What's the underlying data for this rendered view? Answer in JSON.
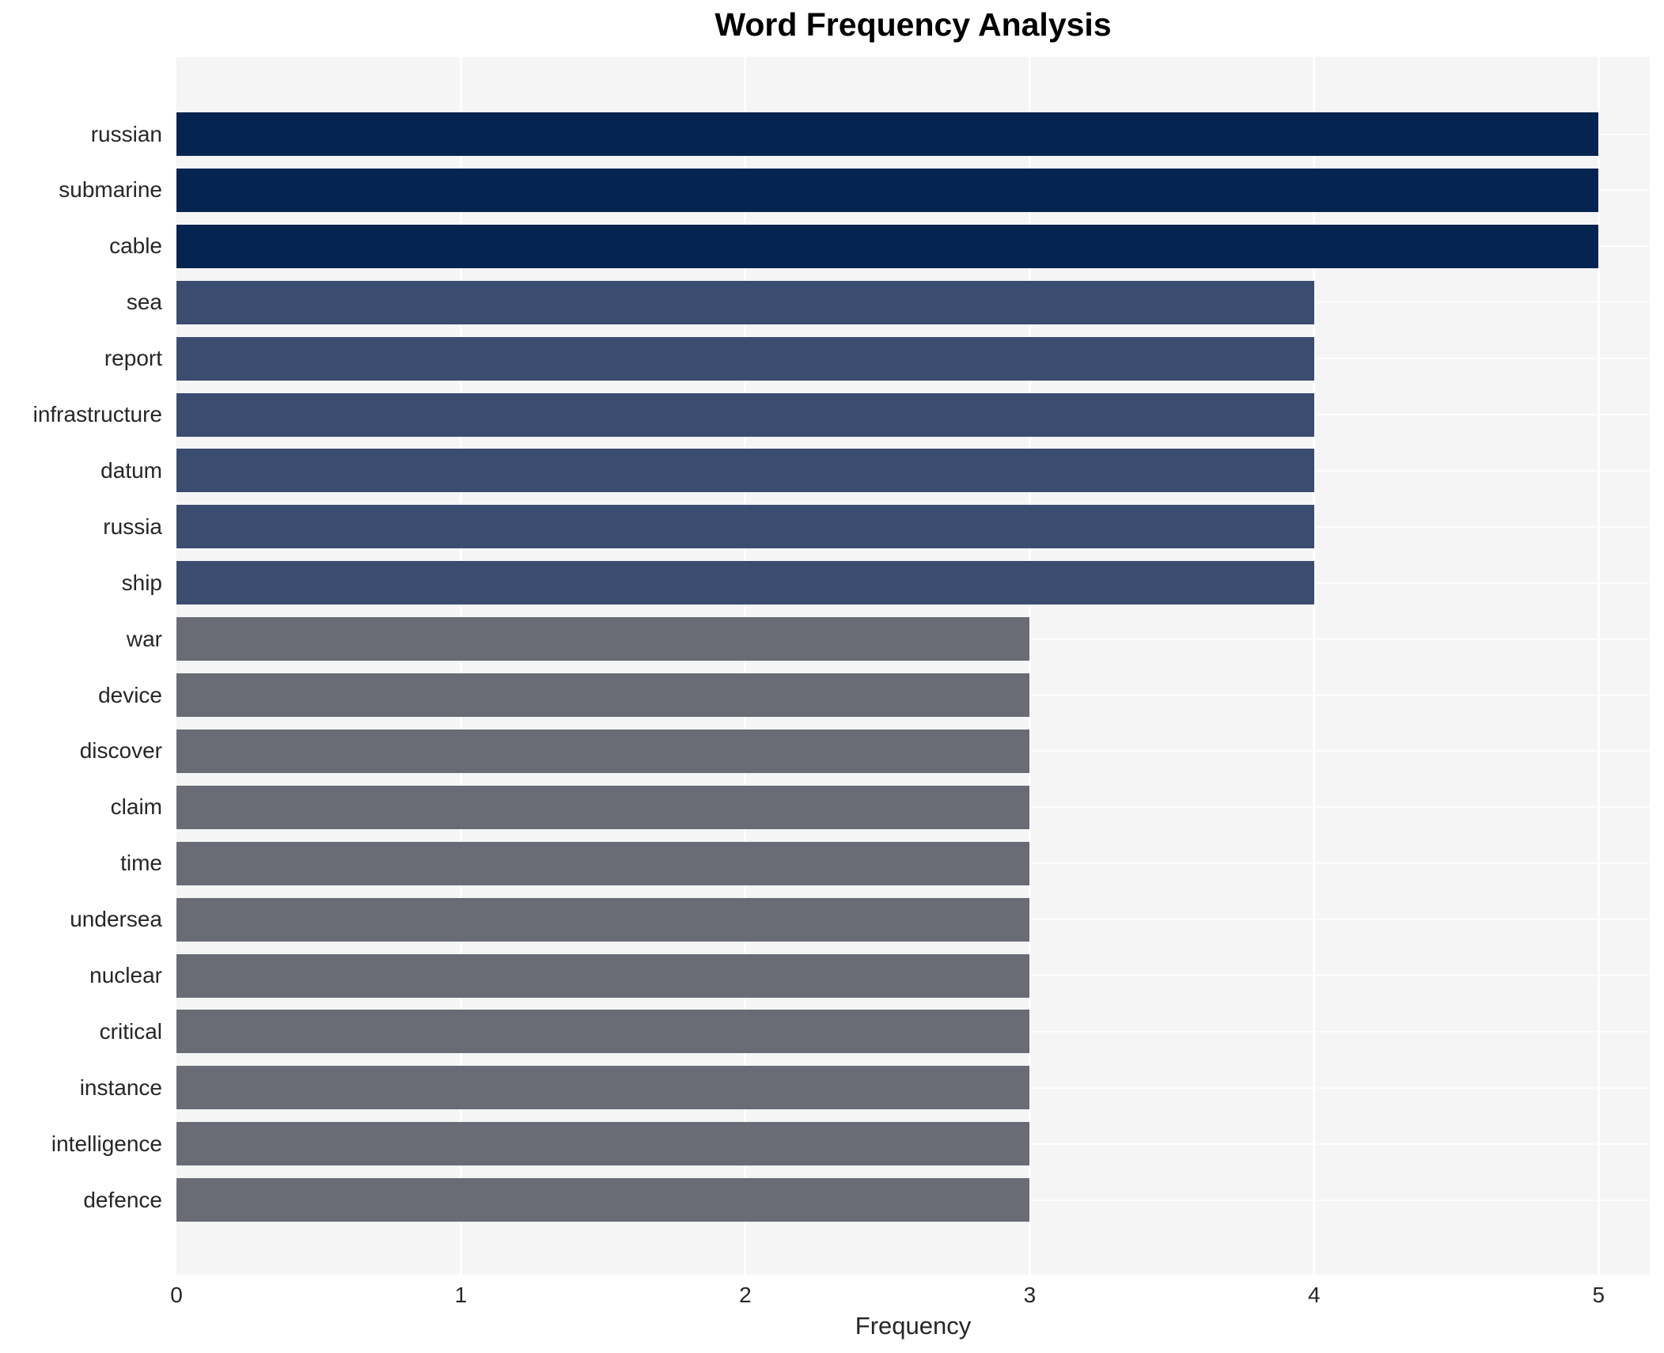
{
  "chart_data": {
    "type": "bar",
    "orientation": "horizontal",
    "title": "Word Frequency Analysis",
    "xlabel": "Frequency",
    "ylabel": "",
    "categories": [
      "russian",
      "submarine",
      "cable",
      "sea",
      "report",
      "infrastructure",
      "datum",
      "russia",
      "ship",
      "war",
      "device",
      "discover",
      "claim",
      "time",
      "undersea",
      "nuclear",
      "critical",
      "instance",
      "intelligence",
      "defence"
    ],
    "values": [
      5,
      5,
      5,
      4,
      4,
      4,
      4,
      4,
      4,
      3,
      3,
      3,
      3,
      3,
      3,
      3,
      3,
      3,
      3,
      3
    ],
    "xticks": [
      "0",
      "1",
      "2",
      "3",
      "4",
      "5"
    ],
    "xlim": [
      0,
      5.18
    ],
    "grid": {
      "vertical_lines_at_ticks": true,
      "horizontal_lines_at_rows": true,
      "gridline_color": "#ffffff"
    },
    "legend": "none",
    "colors": {
      "bar_value_5": "#062450",
      "bar_value_4": "#3b4c71",
      "bar_value_3": "#696c75",
      "panel_background": "#f5f5f6",
      "page_background": "#ffffff",
      "title_text": "#000000",
      "axis_text": "#262626"
    }
  }
}
